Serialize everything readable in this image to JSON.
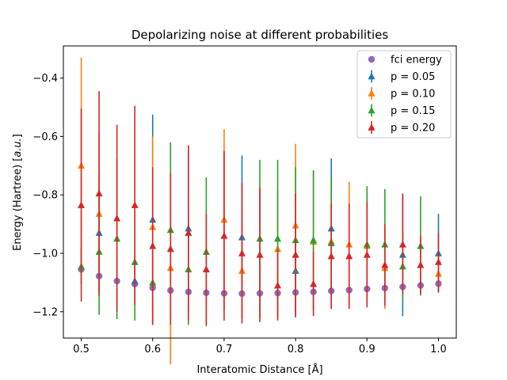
{
  "chart_data": {
    "type": "errorbar",
    "title": "Depolarizing noise at different probabilities",
    "xlabel": "Interatomic Distance [Å]",
    "ylabel_main": "Energy (Hartree) [",
    "ylabel_italic": "a.u.",
    "ylabel_end": "]",
    "xlim": [
      0.475,
      1.025
    ],
    "ylim": [
      -1.29,
      -0.29
    ],
    "xticks": [
      0.5,
      0.6,
      0.7,
      0.8,
      0.9,
      1.0
    ],
    "xtick_labels": [
      "0.5",
      "0.6",
      "0.7",
      "0.8",
      "0.9",
      "1.0"
    ],
    "yticks": [
      -1.2,
      -1.0,
      -0.8,
      -0.6,
      -0.4
    ],
    "ytick_labels": [
      "−1.2",
      "−1.0",
      "−0.8",
      "−0.6",
      "−0.4"
    ],
    "legend_position": "top-right",
    "x": [
      0.5,
      0.525,
      0.55,
      0.575,
      0.6,
      0.625,
      0.65,
      0.675,
      0.7,
      0.725,
      0.75,
      0.775,
      0.8,
      0.825,
      0.85,
      0.875,
      0.9,
      0.925,
      0.95,
      0.975,
      1.0
    ],
    "fci": {
      "name": "fci energy",
      "color": "#9467bd",
      "values": [
        -1.055,
        -1.078,
        -1.095,
        -1.105,
        -1.118,
        -1.127,
        -1.132,
        -1.135,
        -1.137,
        -1.138,
        -1.137,
        -1.136,
        -1.134,
        -1.132,
        -1.129,
        -1.126,
        -1.122,
        -1.119,
        -1.115,
        -1.11,
        -1.104
      ]
    },
    "series": [
      {
        "name": "p = 0.05",
        "color": "#1f77b4",
        "x": [
          0.525,
          0.575,
          0.6,
          0.65,
          0.725,
          0.8,
          0.85,
          0.95,
          1.0
        ],
        "values": [
          -0.93,
          -1.095,
          -0.885,
          -0.915,
          -0.945,
          -1.06,
          -0.915,
          -1.005,
          -1.0
        ],
        "errors": [
          0.2,
          0.08,
          0.36,
          0.28,
          0.28,
          0.16,
          0.24,
          0.21,
          0.135
        ]
      },
      {
        "name": "p = 0.10",
        "color": "#ff7f0e",
        "x": [
          0.5,
          0.525,
          0.6,
          0.625,
          0.7,
          0.725,
          0.775,
          0.8,
          0.825,
          0.85,
          0.875,
          0.9,
          0.925,
          1.0
        ],
        "values": [
          -0.7,
          -0.865,
          -0.91,
          -1.05,
          -0.885,
          -1.06,
          -0.985,
          -0.905,
          -0.96,
          -0.96,
          -0.97,
          -0.975,
          -1.05,
          -1.07
        ],
        "errors": [
          0.37,
          0.28,
          0.31,
          0.33,
          0.31,
          0.16,
          0.2,
          0.28,
          0.24,
          0.16,
          0.215,
          0.17,
          0.14,
          0.06
        ]
      },
      {
        "name": "p = 0.15",
        "color": "#2ca02c",
        "x": [
          0.5,
          0.525,
          0.55,
          0.575,
          0.6,
          0.625,
          0.65,
          0.675,
          0.75,
          0.775,
          0.8,
          0.825,
          0.85,
          0.9,
          0.925,
          0.95,
          0.975
        ],
        "values": [
          -1.045,
          -0.995,
          -0.95,
          -1.03,
          -1.1,
          -0.92,
          -1.055,
          -0.995,
          -0.95,
          -0.95,
          -0.955,
          -0.955,
          -0.965,
          -0.97,
          -0.97,
          -1.045,
          -0.975
        ],
        "errors": [
          0.06,
          0.215,
          0.275,
          0.2,
          0.14,
          0.3,
          0.19,
          0.255,
          0.27,
          0.27,
          0.25,
          0.24,
          0.225,
          0.2,
          0.19,
          0.115,
          0.17
        ]
      },
      {
        "name": "p = 0.20",
        "color": "#d62728",
        "x": [
          0.5,
          0.525,
          0.55,
          0.575,
          0.6,
          0.625,
          0.65,
          0.675,
          0.7,
          0.725,
          0.75,
          0.775,
          0.8,
          0.825,
          0.85,
          0.875,
          0.9,
          0.925,
          0.95,
          0.975,
          1.0
        ],
        "values": [
          -0.835,
          -0.795,
          -0.88,
          -0.835,
          -0.975,
          -0.985,
          -0.93,
          -1.055,
          -0.94,
          -1.0,
          -1.005,
          -1.11,
          -1.005,
          -1.105,
          -1.01,
          -1.01,
          -1.005,
          -1.04,
          -0.97,
          -1.04,
          -1.03
        ],
        "errors": [
          0.33,
          0.35,
          0.32,
          0.34,
          0.27,
          0.26,
          0.3,
          0.19,
          0.29,
          0.24,
          0.23,
          0.12,
          0.21,
          0.11,
          0.18,
          0.18,
          0.18,
          0.14,
          0.17,
          0.1,
          0.1
        ]
      }
    ]
  }
}
